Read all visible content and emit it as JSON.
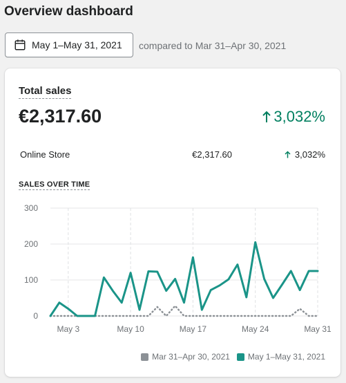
{
  "page": {
    "title": "Overview dashboard"
  },
  "date_range": {
    "label": "May 1–May 31, 2021",
    "compare_text": "compared to Mar 31–Apr 30, 2021",
    "icon": "calendar-icon"
  },
  "card": {
    "title": "Total sales",
    "total": "€2,317.60",
    "change": "3,032%",
    "breakdown": [
      {
        "name": "Online Store",
        "amount": "€2,317.60",
        "change": "3,032%"
      }
    ],
    "section_title": "SALES OVER TIME"
  },
  "colors": {
    "current": "#1a9488",
    "previous": "#8c9196",
    "positive": "#007f5f"
  },
  "chart_data": {
    "type": "line",
    "title": "SALES OVER TIME",
    "xlabel": "",
    "ylabel": "",
    "ylim": [
      0,
      300
    ],
    "y_ticks": [
      0,
      100,
      200,
      300
    ],
    "x_tick_labels": [
      {
        "day": 3,
        "label": "May 3"
      },
      {
        "day": 10,
        "label": "May 10"
      },
      {
        "day": 17,
        "label": "May 17"
      },
      {
        "day": 24,
        "label": "May 24"
      },
      {
        "day": 31,
        "label": "May 31"
      }
    ],
    "x_days": [
      1,
      2,
      3,
      4,
      5,
      6,
      7,
      8,
      9,
      10,
      11,
      12,
      13,
      14,
      15,
      16,
      17,
      18,
      19,
      20,
      21,
      22,
      23,
      24,
      25,
      26,
      27,
      28,
      29,
      30,
      31
    ],
    "series": [
      {
        "name": "Mar 31–Apr 30, 2021",
        "style": "dotted",
        "values": [
          0,
          0,
          0,
          0,
          0,
          0,
          0,
          0,
          0,
          0,
          0,
          0,
          25,
          0,
          28,
          0,
          0,
          0,
          0,
          0,
          0,
          0,
          0,
          0,
          0,
          0,
          0,
          0,
          20,
          0,
          0
        ]
      },
      {
        "name": "May 1–May 31, 2021",
        "style": "solid",
        "values": [
          0,
          37,
          20,
          0,
          0,
          0,
          107,
          70,
          37,
          120,
          17,
          124,
          123,
          70,
          103,
          37,
          163,
          17,
          72,
          85,
          102,
          143,
          52,
          205,
          103,
          50,
          87,
          125,
          72,
          125,
          125
        ]
      }
    ],
    "legend": [
      "Mar 31–Apr 30, 2021",
      "May 1–May 31, 2021"
    ],
    "legend_position": "bottom-right",
    "grid": true
  }
}
